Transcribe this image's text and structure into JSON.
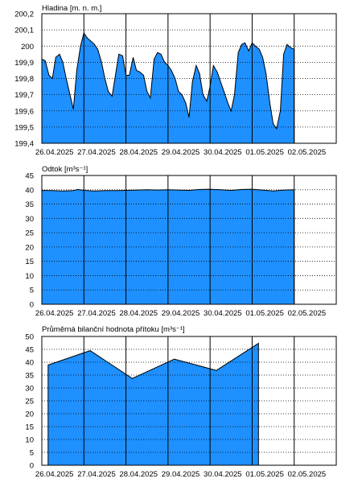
{
  "colors": {
    "fill": "#1e90ff",
    "line": "#000000",
    "background": "#ffffff"
  },
  "chart_data": [
    {
      "type": "area",
      "title": "Hladina [m. n. m.]",
      "x_labels": [
        "26.04.2025",
        "27.04.2025",
        "28.04.2025",
        "29.04.2025",
        "30.04.2025",
        "01.05.2025",
        "02.05.2025"
      ],
      "y_ticks": [
        "200,2",
        "200,1",
        "200",
        "199,9",
        "199,8",
        "199,7",
        "199,6",
        "199,5",
        "199,4"
      ],
      "ylim": [
        199.4,
        200.2
      ],
      "x_range": [
        0,
        7
      ],
      "grid": true,
      "x": [
        0,
        0.08,
        0.17,
        0.25,
        0.33,
        0.42,
        0.5,
        0.58,
        0.67,
        0.75,
        0.83,
        0.92,
        1.0,
        1.08,
        1.17,
        1.25,
        1.33,
        1.42,
        1.5,
        1.58,
        1.67,
        1.75,
        1.83,
        1.92,
        2.0,
        2.08,
        2.17,
        2.25,
        2.33,
        2.42,
        2.5,
        2.58,
        2.67,
        2.75,
        2.83,
        2.92,
        3.0,
        3.08,
        3.17,
        3.25,
        3.33,
        3.42,
        3.5,
        3.58,
        3.67,
        3.75,
        3.83,
        3.92,
        4.0,
        4.08,
        4.17,
        4.25,
        4.33,
        4.42,
        4.5,
        4.58,
        4.67,
        4.75,
        4.83,
        4.92,
        5.0,
        5.08,
        5.17,
        5.25,
        5.33,
        5.42,
        5.5,
        5.58,
        5.67,
        5.75,
        5.83,
        5.92,
        6.0
      ],
      "values": [
        199.92,
        199.91,
        199.82,
        199.8,
        199.93,
        199.95,
        199.9,
        199.8,
        199.7,
        199.61,
        199.85,
        200.0,
        200.08,
        200.05,
        200.03,
        200.01,
        199.98,
        199.9,
        199.8,
        199.72,
        199.69,
        199.82,
        199.95,
        199.94,
        199.82,
        199.82,
        199.93,
        199.85,
        199.84,
        199.82,
        199.72,
        199.68,
        199.92,
        199.96,
        199.95,
        199.9,
        199.88,
        199.85,
        199.8,
        199.72,
        199.7,
        199.65,
        199.56,
        199.78,
        199.88,
        199.83,
        199.7,
        199.66,
        199.75,
        199.88,
        199.84,
        199.78,
        199.72,
        199.65,
        199.6,
        199.7,
        199.96,
        200.01,
        200.02,
        199.97,
        200.02,
        200.0,
        199.98,
        199.93,
        199.83,
        199.65,
        199.52,
        199.49,
        199.6,
        199.95,
        200.01,
        199.99,
        199.98
      ]
    },
    {
      "type": "area",
      "title": "Odtok [m³s⁻¹]",
      "x_labels": [
        "26.04.2025",
        "27.04.2025",
        "28.04.2025",
        "29.04.2025",
        "30.04.2025",
        "01.05.2025",
        "02.05.2025"
      ],
      "y_ticks": [
        "45",
        "40",
        "35",
        "30",
        "25",
        "20",
        "15",
        "10",
        "5",
        "0"
      ],
      "ylim": [
        0,
        45
      ],
      "x_range": [
        0,
        7
      ],
      "grid": true,
      "x": [
        0,
        0.25,
        0.5,
        0.75,
        0.85,
        1.0,
        1.25,
        1.5,
        1.75,
        2.0,
        2.25,
        2.5,
        2.75,
        3.0,
        3.25,
        3.5,
        3.75,
        4.0,
        4.25,
        4.5,
        4.75,
        5.0,
        5.25,
        5.5,
        5.75,
        6.0
      ],
      "values": [
        39.8,
        39.7,
        39.6,
        39.7,
        40.1,
        39.8,
        39.6,
        39.7,
        39.7,
        39.8,
        39.9,
        40.0,
        39.9,
        40.0,
        39.9,
        39.8,
        40.1,
        40.2,
        40.0,
        39.8,
        40.1,
        40.2,
        39.9,
        39.6,
        39.9,
        40.0
      ]
    },
    {
      "type": "area",
      "title": "Průměrná bilanční hodnota přítoku   [m³s⁻¹]",
      "x_labels": [
        "26.04.2025",
        "27.04.2025",
        "28.04.2025",
        "29.04.2025",
        "30.04.2025",
        "01.05.2025",
        "02.05.2025"
      ],
      "y_ticks": [
        "50",
        "45",
        "40",
        "35",
        "30",
        "25",
        "20",
        "15",
        "10",
        "5",
        "0"
      ],
      "ylim": [
        0,
        50
      ],
      "x_range": [
        0,
        7
      ],
      "grid": true,
      "x": [
        0.15,
        1.15,
        2.15,
        3.15,
        4.15,
        5.15
      ],
      "values": [
        38.9,
        44.5,
        33.7,
        41.2,
        36.8,
        47.3
      ]
    }
  ]
}
